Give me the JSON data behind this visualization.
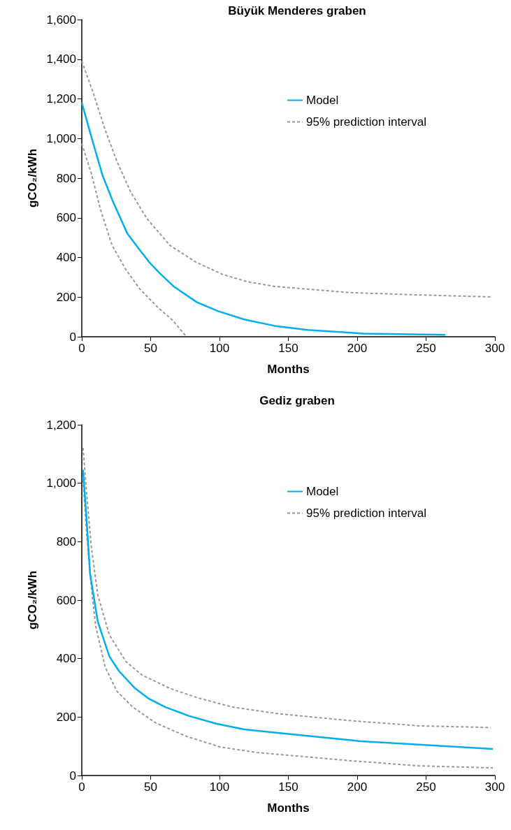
{
  "chart_data": [
    {
      "type": "line",
      "title": "Büyük Menderes graben",
      "xlabel": "Months",
      "ylabel": "gCO₂/kWh",
      "xlim": [
        0,
        300
      ],
      "xticks": [
        0,
        50,
        100,
        150,
        200,
        250,
        300
      ],
      "ylim": [
        0,
        1600
      ],
      "yticks": [
        0,
        200,
        400,
        600,
        800,
        {
          "value": 1000,
          "label": "1,000"
        },
        {
          "value": 1200,
          "label": "1,200"
        },
        {
          "value": 1400,
          "label": "1,400"
        },
        {
          "value": 1600,
          "label": "1,600"
        }
      ],
      "legend": "top right",
      "grid": false,
      "marker": "none",
      "series": [
        {
          "name": "Model",
          "color": "#00aeef",
          "line_style": "solid",
          "x": [
            0,
            7.4,
            15,
            22.7,
            33,
            41.5,
            49,
            56.5,
            66.7,
            83.6,
            99,
            118,
            140,
            164,
            205,
            264
          ],
          "values": [
            1180,
            998,
            815,
            681,
            522,
            443,
            376,
            321,
            254,
            174,
            129,
            87,
            55,
            34,
            16,
            10
          ]
        },
        {
          "name": "95% prediction interval",
          "color": "#999999",
          "line_style": "dashed",
          "x": [
            0,
            8.3,
            16.8,
            25.3,
            35.5,
            47.4,
            64,
            83,
            102,
            120,
            140,
            194,
            245,
            297
          ],
          "values": [
            1390,
            1230,
            1047,
            888,
            730,
            595,
            461,
            376,
            315,
            278,
            254,
            223,
            211,
            201
          ]
        },
        {
          "color": "#999999",
          "line_style": "dashed",
          "x": [
            0,
            6.8,
            13.5,
            22,
            32,
            42,
            55.8,
            66,
            76
          ],
          "values": [
            974,
            827,
            644,
            461,
            339,
            242,
            144,
            83,
            0
          ]
        }
      ]
    },
    {
      "type": "line",
      "title": "Gediz graben",
      "xlabel": "Months",
      "ylabel": "gCO₂/kWh",
      "xlim": [
        0,
        300
      ],
      "xticks": [
        0,
        50,
        100,
        150,
        200,
        250,
        300
      ],
      "ylim": [
        0,
        1200
      ],
      "yticks": [
        0,
        200,
        400,
        600,
        800,
        {
          "value": 1000,
          "label": "1,000"
        },
        {
          "value": 1200,
          "label": "1,200"
        }
      ],
      "legend": "top right",
      "grid": false,
      "marker": "none",
      "series": [
        {
          "name": "Model",
          "color": "#00aeef",
          "line_style": "solid",
          "x": [
            0.9,
            3.5,
            6,
            11.6,
            20,
            26.9,
            38.7,
            49,
            60.7,
            77.7,
            98,
            118,
            143.6,
            203,
            262,
            298.5
          ],
          "values": [
            1046,
            874,
            691,
            527,
            408,
            358,
            298,
            262,
            234,
            204,
            177,
            158,
            145,
            117,
            101,
            91
          ]
        },
        {
          "name": "95% prediction interval",
          "color": "#999999",
          "line_style": "dashed",
          "x": [
            0.9,
            3.5,
            6.9,
            11.6,
            20,
            32,
            43.7,
            64,
            84,
            109.5,
            143.6,
            194,
            245,
            297
          ],
          "values": [
            1121,
            966,
            783,
            618,
            481,
            390,
            344,
            298,
            266,
            234,
            211,
            188,
            170,
            164
          ]
        },
        {
          "color": "#999999",
          "line_style": "dashed",
          "x": [
            0.9,
            3.5,
            6.9,
            10.2,
            17,
            25.4,
            37,
            54,
            76,
            101,
            127,
            143.6,
            194,
            245,
            298.5
          ],
          "values": [
            1012,
            829,
            646,
            508,
            371,
            289,
            234,
            179,
            134,
            97,
            79,
            72,
            51,
            33,
            26
          ]
        }
      ]
    }
  ]
}
